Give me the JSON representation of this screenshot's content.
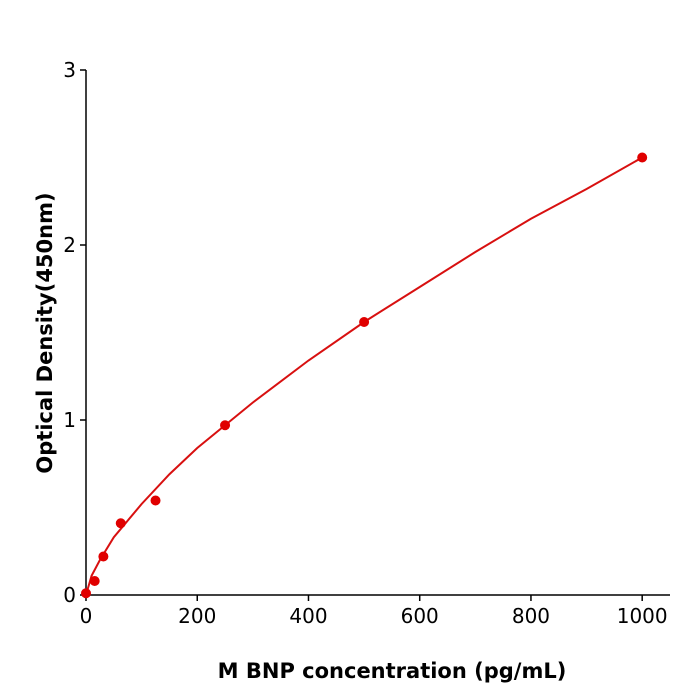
{
  "chart_data": {
    "type": "scatter",
    "x_label": "M  BNP concentration (pg/mL)",
    "y_label": "Optical Density(450nm)",
    "xlim": [
      0,
      1050
    ],
    "ylim": [
      0,
      3
    ],
    "xticks": [
      0,
      200,
      400,
      600,
      800,
      1000
    ],
    "yticks": [
      0,
      1,
      2,
      3
    ],
    "series": [
      {
        "type": "scatter",
        "color": "#e00000",
        "x": [
          0,
          15.6,
          31.25,
          62.5,
          125,
          250,
          500,
          1000
        ],
        "values": [
          0.01,
          0.08,
          0.22,
          0.41,
          0.54,
          0.97,
          1.56,
          2.5
        ]
      },
      {
        "type": "line",
        "color": "#d81010",
        "x": [
          0,
          10,
          25,
          50,
          100,
          150,
          200,
          300,
          400,
          500,
          600,
          700,
          800,
          900,
          1000
        ],
        "values": [
          0,
          0.11,
          0.2,
          0.33,
          0.52,
          0.69,
          0.84,
          1.1,
          1.34,
          1.56,
          1.76,
          1.96,
          2.15,
          2.32,
          2.5
        ]
      }
    ]
  }
}
